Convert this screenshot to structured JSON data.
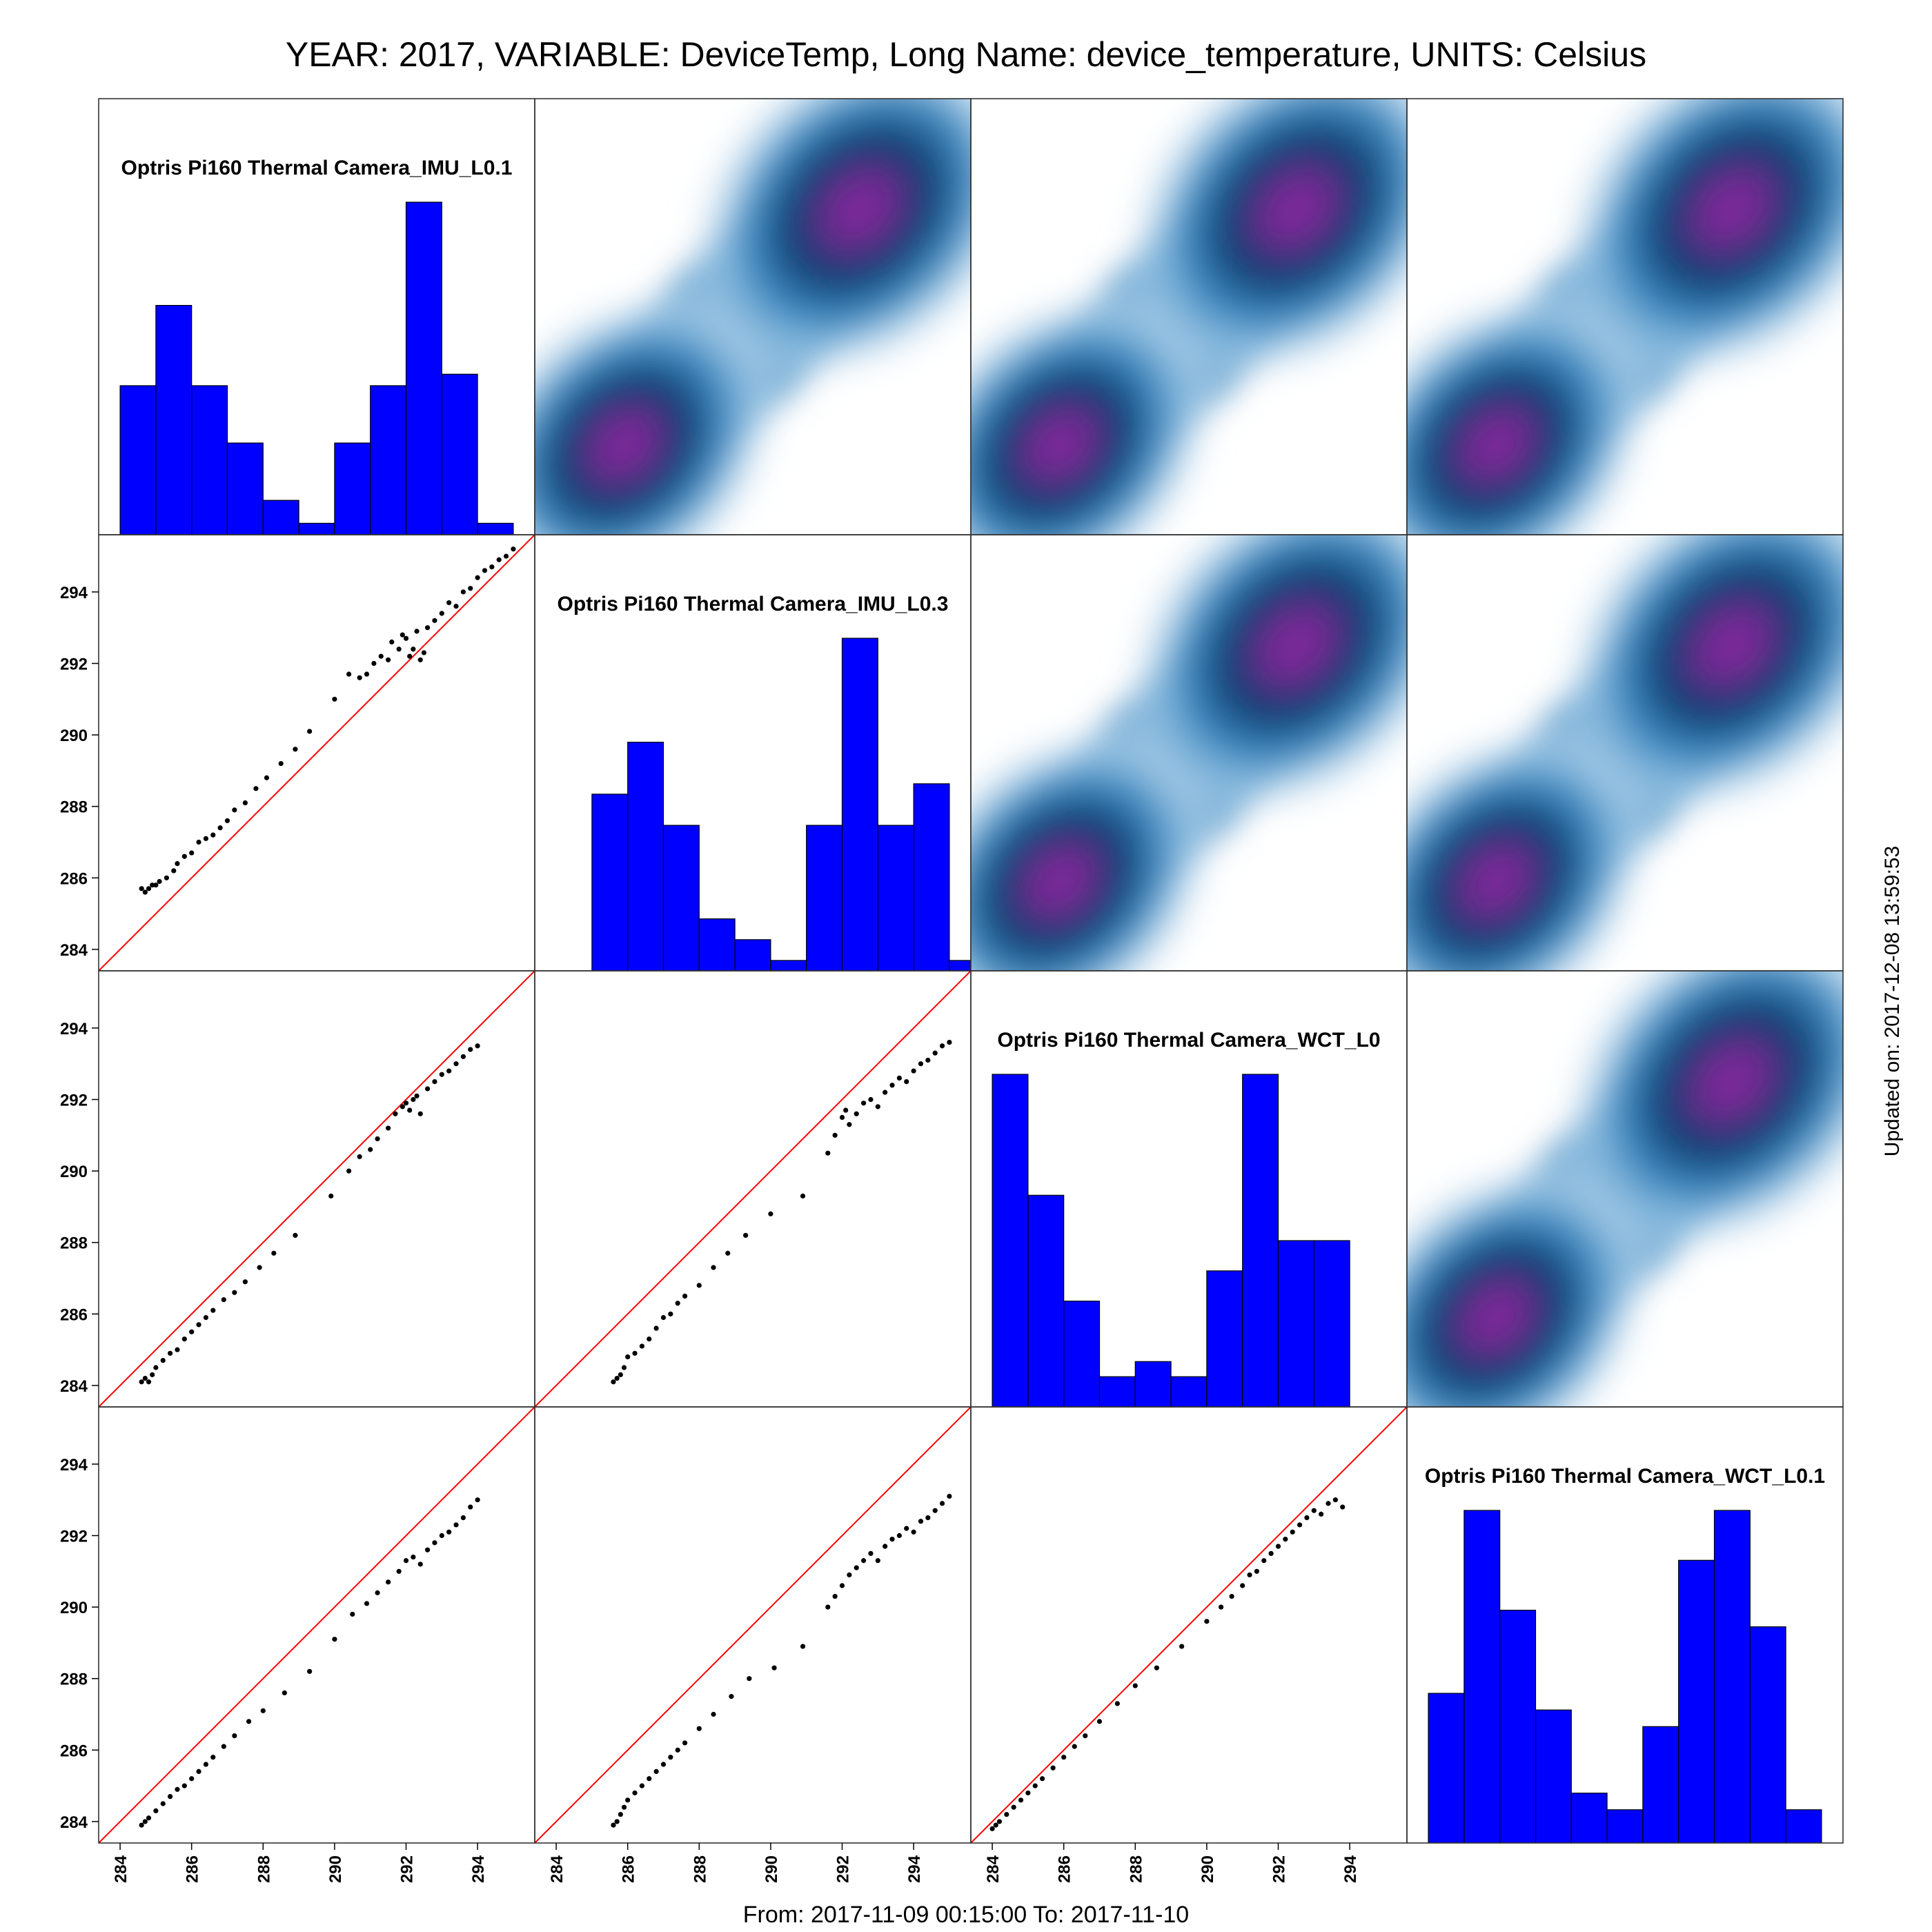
{
  "figure": {
    "title": "YEAR: 2017, VARIABLE: DeviceTemp, Long Name: device_temperature, UNITS: Celsius",
    "footer": "From: 2017-11-09 00:15:00 To: 2017-11-10",
    "side_label": "Updated on: 2017-12-08 13:59:53"
  },
  "colors": {
    "histogram": "#0000ff",
    "identity_line": "#ff0000",
    "points": "#000000",
    "density_low": "#ffffff",
    "density_mid": "#3a87c0",
    "density_dark": "#0b3c6e",
    "density_peak": "#7b2a96"
  },
  "chart_data": {
    "type": "scatter-matrix",
    "variables": [
      "Optris Pi160 Thermal Camera_IMU_L0.1",
      "Optris Pi160 Thermal Camera_IMU_L0.3",
      "Optris Pi160 Thermal Camera_WCT_L0",
      "Optris Pi160 Thermal Camera_WCT_L0.1"
    ],
    "axis_range": [
      283.4,
      295.6
    ],
    "ticks": [
      284,
      286,
      288,
      290,
      292,
      294
    ],
    "tick_labels": [
      "284",
      "286",
      "288",
      "290",
      "292",
      "294"
    ],
    "diagonal": "histogram",
    "lower": "scatter with identity line",
    "upper": "2d density",
    "histograms": [
      {
        "bin_edges": [
          284,
          285,
          286,
          287,
          288,
          289,
          290,
          291,
          292,
          293,
          294,
          295
        ],
        "counts": [
          13,
          20,
          13,
          8,
          3,
          1,
          8,
          13,
          29,
          14,
          1
        ]
      },
      {
        "bin_edges": [
          285,
          286,
          287,
          288,
          289,
          290,
          291,
          292,
          293,
          294,
          295,
          296
        ],
        "counts": [
          17,
          22,
          14,
          5,
          3,
          1,
          14,
          32,
          14,
          18,
          1
        ]
      },
      {
        "bin_edges": [
          284,
          285,
          286,
          287,
          288,
          289,
          290,
          291,
          292,
          293,
          294
        ],
        "counts": [
          22,
          14,
          7,
          2,
          3,
          2,
          9,
          22,
          11,
          11
        ]
      },
      {
        "bin_edges": [
          284,
          285,
          286,
          287,
          288,
          289,
          290,
          291,
          292,
          293,
          294,
          295
        ],
        "counts": [
          9,
          20,
          14,
          8,
          3,
          2,
          7,
          17,
          20,
          13,
          2
        ]
      }
    ],
    "density_peaks": [
      [
        285.9,
        285.9
      ],
      [
        292.5,
        292.5
      ]
    ],
    "scatter": [
      {
        "row": 1,
        "col": 0,
        "x": [
          284.6,
          284.7,
          284.8,
          284.9,
          285.0,
          285.1,
          285.3,
          285.5,
          285.6,
          285.8,
          286.0,
          286.2,
          286.4,
          286.6,
          286.8,
          287.0,
          287.2,
          287.5,
          287.8,
          288.1,
          288.5,
          288.9,
          289.3,
          290.0,
          290.4,
          290.7,
          290.9,
          291.1,
          291.3,
          291.5,
          291.6,
          291.8,
          291.9,
          292.0,
          292.1,
          292.2,
          292.3,
          292.4,
          292.5,
          292.6,
          292.8,
          293.0,
          293.2,
          293.4,
          293.6,
          293.8,
          294.0,
          294.2,
          294.4,
          294.6,
          294.8,
          295.0
        ],
        "y": [
          285.7,
          285.6,
          285.7,
          285.8,
          285.8,
          285.9,
          286.0,
          286.2,
          286.4,
          286.6,
          286.7,
          287.0,
          287.1,
          287.2,
          287.4,
          287.6,
          287.9,
          288.1,
          288.5,
          288.8,
          289.2,
          289.6,
          290.1,
          291.0,
          291.7,
          291.6,
          291.7,
          292.0,
          292.2,
          292.1,
          292.6,
          292.4,
          292.8,
          292.7,
          292.2,
          292.4,
          292.9,
          292.1,
          292.3,
          293.0,
          293.2,
          293.4,
          293.7,
          293.6,
          294.0,
          294.1,
          294.4,
          294.6,
          294.7,
          294.9,
          295.0,
          295.2
        ]
      },
      {
        "row": 2,
        "col": 0,
        "x": [
          284.6,
          284.7,
          284.8,
          284.9,
          285.0,
          285.2,
          285.4,
          285.6,
          285.8,
          286.0,
          286.2,
          286.4,
          286.6,
          286.9,
          287.2,
          287.5,
          287.9,
          288.3,
          288.9,
          289.9,
          290.4,
          290.7,
          291.0,
          291.2,
          291.5,
          291.7,
          291.9,
          292.0,
          292.1,
          292.2,
          292.3,
          292.4,
          292.6,
          292.8,
          293.0,
          293.2,
          293.4,
          293.6,
          293.8,
          294.0
        ],
        "y": [
          284.1,
          284.2,
          284.1,
          284.3,
          284.5,
          284.7,
          284.9,
          285.0,
          285.3,
          285.5,
          285.7,
          285.9,
          286.1,
          286.4,
          286.6,
          286.9,
          287.3,
          287.7,
          288.2,
          289.3,
          290.0,
          290.4,
          290.6,
          290.9,
          291.2,
          291.6,
          291.8,
          291.9,
          291.7,
          292.0,
          292.1,
          291.6,
          292.3,
          292.5,
          292.7,
          292.8,
          293.0,
          293.2,
          293.4,
          293.5
        ]
      },
      {
        "row": 2,
        "col": 1,
        "x": [
          285.6,
          285.7,
          285.8,
          285.9,
          286.0,
          286.2,
          286.4,
          286.6,
          286.8,
          287.0,
          287.2,
          287.4,
          287.6,
          288.0,
          288.4,
          288.8,
          289.3,
          290.0,
          290.9,
          291.6,
          291.8,
          292.0,
          292.1,
          292.2,
          292.4,
          292.6,
          292.8,
          293.0,
          293.2,
          293.4,
          293.6,
          293.8,
          294.0,
          294.2,
          294.4,
          294.6,
          294.8,
          295.0
        ],
        "y": [
          284.1,
          284.2,
          284.3,
          284.5,
          284.8,
          284.9,
          285.1,
          285.3,
          285.6,
          285.9,
          286.0,
          286.3,
          286.5,
          286.8,
          287.3,
          287.7,
          288.2,
          288.8,
          289.3,
          290.5,
          291.0,
          291.5,
          291.7,
          291.3,
          291.6,
          291.9,
          292.0,
          291.8,
          292.2,
          292.4,
          292.6,
          292.5,
          292.8,
          293.0,
          293.1,
          293.3,
          293.5,
          293.6
        ]
      },
      {
        "row": 3,
        "col": 0,
        "x": [
          284.6,
          284.7,
          284.8,
          285.0,
          285.2,
          285.4,
          285.6,
          285.8,
          286.0,
          286.2,
          286.4,
          286.6,
          286.9,
          287.2,
          287.6,
          288.0,
          288.6,
          289.3,
          290.0,
          290.5,
          290.9,
          291.2,
          291.5,
          291.8,
          292.0,
          292.2,
          292.4,
          292.6,
          292.8,
          293.0,
          293.2,
          293.4,
          293.6,
          293.8,
          294.0
        ],
        "y": [
          283.9,
          284.0,
          284.1,
          284.3,
          284.5,
          284.7,
          284.9,
          285.0,
          285.2,
          285.4,
          285.6,
          285.8,
          286.1,
          286.4,
          286.8,
          287.1,
          287.6,
          288.2,
          289.1,
          289.8,
          290.1,
          290.4,
          290.7,
          291.0,
          291.3,
          291.4,
          291.2,
          291.6,
          291.8,
          292.0,
          292.1,
          292.3,
          292.5,
          292.8,
          293.0
        ]
      },
      {
        "row": 3,
        "col": 1,
        "x": [
          285.6,
          285.7,
          285.8,
          285.9,
          286.0,
          286.2,
          286.4,
          286.6,
          286.8,
          287.0,
          287.2,
          287.4,
          287.6,
          288.0,
          288.4,
          288.9,
          289.4,
          290.1,
          290.9,
          291.6,
          291.8,
          292.0,
          292.2,
          292.4,
          292.6,
          292.8,
          293.0,
          293.2,
          293.4,
          293.6,
          293.8,
          294.0,
          294.2,
          294.4,
          294.6,
          294.8,
          295.0
        ],
        "y": [
          283.9,
          284.0,
          284.2,
          284.4,
          284.6,
          284.8,
          285.0,
          285.2,
          285.4,
          285.6,
          285.8,
          286.0,
          286.2,
          286.6,
          287.0,
          287.5,
          288.0,
          288.3,
          288.9,
          290.0,
          290.3,
          290.6,
          290.9,
          291.1,
          291.3,
          291.5,
          291.3,
          291.7,
          291.9,
          292.0,
          292.2,
          292.1,
          292.4,
          292.5,
          292.7,
          292.9,
          293.1
        ]
      },
      {
        "row": 3,
        "col": 2,
        "x": [
          284.0,
          284.1,
          284.2,
          284.4,
          284.6,
          284.8,
          285.0,
          285.2,
          285.4,
          285.7,
          286.0,
          286.3,
          286.6,
          287.0,
          287.5,
          288.0,
          288.6,
          289.3,
          290.0,
          290.4,
          290.7,
          291.0,
          291.2,
          291.4,
          291.6,
          291.8,
          292.0,
          292.2,
          292.4,
          292.6,
          292.8,
          293.0,
          293.2,
          293.4,
          293.6,
          293.8
        ],
        "y": [
          283.8,
          283.9,
          284.0,
          284.2,
          284.4,
          284.6,
          284.8,
          285.0,
          285.2,
          285.5,
          285.8,
          286.1,
          286.4,
          286.8,
          287.3,
          287.8,
          288.3,
          288.9,
          289.6,
          290.0,
          290.3,
          290.6,
          290.9,
          291.0,
          291.3,
          291.5,
          291.7,
          291.9,
          292.1,
          292.3,
          292.5,
          292.7,
          292.6,
          292.9,
          293.0,
          292.8
        ]
      }
    ]
  }
}
